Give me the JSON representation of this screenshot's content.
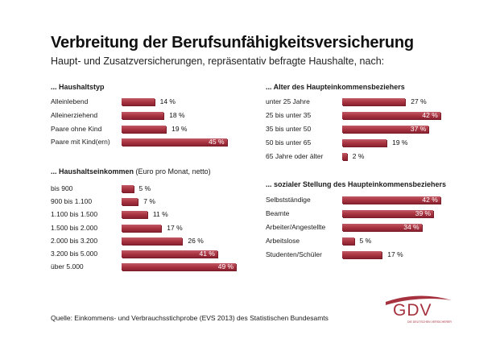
{
  "title": "Verbreitung der Berufsunfähigkeitsversicherung",
  "subtitle": "Haupt- und Zusatzversicherungen, repräsentativ befragte Haushalte, nach:",
  "source": "Quelle: Einkommens- und Verbrauchsstichprobe (EVS 2013) des Statistischen Bundesamts",
  "logo": {
    "text": "GDV",
    "subtext": "DIE DEUTSCHEN VERSICHERER"
  },
  "colors": {
    "bar": "#a7323f",
    "bar_light": "#c25b66",
    "logo": "#a7323f"
  },
  "chart_data": [
    {
      "type": "bar",
      "title": "... Haushaltstyp",
      "note": "",
      "unit": "%",
      "categories": [
        "Alleinlebend",
        "Alleinerziehend",
        "Paare ohne Kind",
        "Paare mit Kind(ern)"
      ],
      "values": [
        14,
        18,
        19,
        45
      ],
      "labels": [
        "14 %",
        "18 %",
        "19 %",
        "45 %"
      ]
    },
    {
      "type": "bar",
      "title": "... Haushaltseinkommen",
      "note": " (Euro pro Monat, netto)",
      "unit": "%",
      "categories": [
        "bis 900",
        "900 bis 1.100",
        "1.100 bis 1.500",
        "1.500 bis 2.000",
        "2.000 bis 3.200",
        "3.200 bis 5.000",
        "über 5.000"
      ],
      "values": [
        5,
        7,
        11,
        17,
        26,
        41,
        49
      ],
      "labels": [
        "5 %",
        "7 %",
        "11 %",
        "17 %",
        "26 %",
        "41 %",
        "49 %"
      ]
    },
    {
      "type": "bar",
      "title": "... Alter des Haupteinkommensbeziehers",
      "note": "",
      "unit": "%",
      "categories": [
        "unter 25 Jahre",
        "25 bis unter 35",
        "35 bis unter 50",
        "50 bis unter 65",
        "65 Jahre oder älter"
      ],
      "values": [
        27,
        42,
        37,
        19,
        2
      ],
      "labels": [
        "27 %",
        "42 %",
        "37 %",
        "19 %",
        "2 %"
      ]
    },
    {
      "type": "bar",
      "title": "... sozialer Stellung des Haupteinkommensbeziehers",
      "note": "",
      "unit": "%",
      "categories": [
        "Selbstständige",
        "Beamte",
        "Arbeiter/Angestellte",
        "Arbeitslose",
        "Studenten/Schüler"
      ],
      "values": [
        42,
        39,
        34,
        5,
        17
      ],
      "labels": [
        "42 %",
        "39 %",
        "34 %",
        "5 %",
        "17 %"
      ]
    }
  ]
}
